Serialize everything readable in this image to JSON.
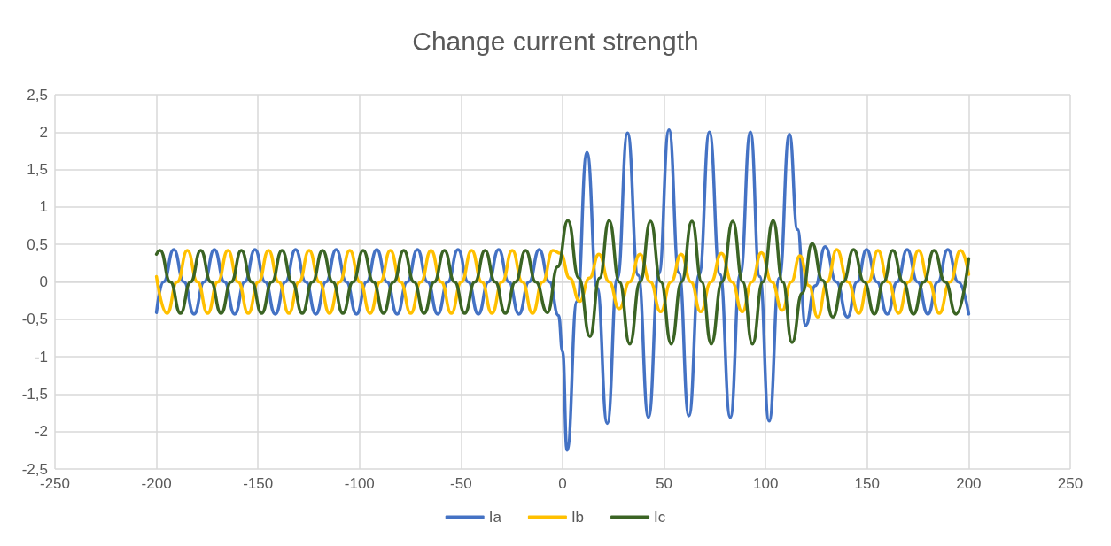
{
  "chart_data": {
    "type": "line",
    "title": "Change current strength",
    "xlim": [
      -250,
      250
    ],
    "xticks": [
      -250,
      -200,
      -150,
      -100,
      -50,
      0,
      50,
      100,
      150,
      200,
      250
    ],
    "ylim": [
      -2.5,
      2.5
    ],
    "yticks": [
      {
        "value": -2.5,
        "label": "-2,5"
      },
      -2,
      {
        "value": -1.5,
        "label": "-1,5"
      },
      -1,
      {
        "value": -0.5,
        "label": "-0,5"
      },
      0,
      {
        "value": 0.5,
        "label": "0,5"
      },
      1,
      {
        "value": 1.5,
        "label": "1,5"
      },
      2,
      {
        "value": 2.5,
        "label": "2,5"
      }
    ],
    "grid": true,
    "legend": "bottom",
    "marker": "none",
    "line_style": "solid",
    "series": [
      {
        "name": "Ia",
        "color": "#4472c4",
        "x": [
          -200,
          -196.5,
          -191.5,
          -186.5,
          -181.5,
          -176.5,
          -171.5,
          -166.5,
          -161.5,
          -156.5,
          -151.5,
          -146.5,
          -141.5,
          -136.5,
          -131.5,
          -126.5,
          -121.5,
          -116.5,
          -111.5,
          -106.5,
          -101.5,
          -96.5,
          -91.5,
          -86.5,
          -81.5,
          -76.5,
          -71.5,
          -66.5,
          -61.5,
          -56.5,
          -51.5,
          -46.5,
          -41.5,
          -36.5,
          -31.5,
          -26.5,
          -21.5,
          -16.5,
          -11.5,
          -6.5,
          -2,
          0,
          2.2,
          7.1,
          12,
          17,
          22,
          27,
          32,
          37.2,
          42.3,
          47.4,
          52.4,
          57.3,
          62.2,
          67.3,
          72.3,
          77.5,
          82.6,
          87.5,
          92.5,
          97.1,
          101.7,
          106.7,
          111.7,
          115.7,
          119.7,
          124.5,
          129.3,
          134.8,
          140.3,
          145,
          149.7,
          154.8,
          159.9,
          164.8,
          169.7,
          174.8,
          179.9,
          184.8,
          189.7,
          194.8,
          200
        ],
        "values": [
          -0.41,
          0,
          0.43,
          0,
          -0.43,
          0,
          0.43,
          0,
          -0.43,
          0,
          0.43,
          0,
          -0.43,
          0,
          0.43,
          0,
          -0.43,
          0,
          0.43,
          0,
          -0.43,
          0,
          0.43,
          0,
          -0.43,
          0,
          0.43,
          0,
          -0.43,
          0,
          0.43,
          0,
          -0.43,
          0,
          0.43,
          0,
          -0.43,
          0,
          0.43,
          0,
          -0.45,
          -0.93,
          -2.25,
          -0.26,
          1.73,
          -0.08,
          -1.89,
          0.05,
          1.99,
          0.09,
          -1.81,
          0.11,
          2.03,
          0.12,
          -1.79,
          0.1,
          2.0,
          0.1,
          -1.81,
          0.1,
          2.0,
          0.07,
          -1.86,
          0.05,
          1.97,
          0.7,
          -0.58,
          -0.05,
          0.47,
          0,
          -0.47,
          0,
          0.43,
          0,
          -0.43,
          0,
          0.43,
          0,
          -0.43,
          0,
          0.43,
          0,
          -0.43
        ]
      },
      {
        "name": "Ib",
        "color": "#ffc000",
        "x": [
          -200,
          -194.8,
          -189.8,
          -184.8,
          -179.8,
          -174.8,
          -169.8,
          -164.8,
          -159.8,
          -154.8,
          -149.8,
          -144.8,
          -139.8,
          -134.8,
          -129.8,
          -124.8,
          -119.8,
          -114.8,
          -109.8,
          -104.8,
          -99.8,
          -94.8,
          -89.8,
          -84.8,
          -79.8,
          -74.8,
          -69.8,
          -64.8,
          -59.8,
          -54.8,
          -49.8,
          -44.8,
          -39.8,
          -34.8,
          -29.8,
          -24.8,
          -19.8,
          -14.8,
          -9.8,
          -4.8,
          -1,
          3.5,
          8.4,
          13.2,
          17.9,
          22.9,
          27.9,
          33,
          38.1,
          43.2,
          48.3,
          53.4,
          58.4,
          63.2,
          68,
          73.1,
          78.2,
          83.4,
          88.5,
          93.2,
          97.9,
          103,
          108.2,
          112.6,
          116.9,
          121.3,
          125.6,
          130.3,
          135,
          140.5,
          145.9,
          150.6,
          155.3,
          160.4,
          165.5,
          170.4,
          175.3,
          180.4,
          185.5,
          190.8,
          196,
          200
        ],
        "values": [
          0.07,
          -0.42,
          0,
          0.42,
          0,
          -0.42,
          0,
          0.42,
          0,
          -0.42,
          0,
          0.42,
          0,
          -0.42,
          0,
          0.42,
          0,
          -0.42,
          0,
          0.42,
          0,
          -0.42,
          0,
          0.42,
          0,
          -0.42,
          0,
          0.42,
          0,
          -0.42,
          0,
          0.42,
          0,
          -0.42,
          0,
          0.42,
          0,
          -0.42,
          0,
          0.42,
          0.38,
          0.05,
          -0.26,
          0.05,
          0.37,
          0,
          -0.36,
          0,
          0.37,
          0,
          -0.4,
          0,
          0.37,
          0,
          -0.4,
          0,
          0.38,
          0,
          -0.4,
          0,
          0.39,
          0,
          -0.38,
          0,
          0.35,
          -0.05,
          -0.47,
          0,
          0.43,
          0,
          -0.42,
          0,
          0.42,
          0,
          -0.42,
          0,
          0.42,
          0,
          -0.42,
          0,
          0.42,
          0.1
        ]
      },
      {
        "name": "Ic",
        "color": "#3b6424",
        "x": [
          -200,
          -198.2,
          -193.2,
          -188.2,
          -183.2,
          -178.2,
          -173.2,
          -168.2,
          -163.2,
          -158.2,
          -153.2,
          -148.2,
          -143.2,
          -138.2,
          -133.2,
          -128.2,
          -123.2,
          -118.2,
          -113.2,
          -108.2,
          -103.2,
          -98.2,
          -93.2,
          -88.2,
          -83.2,
          -78.2,
          -73.2,
          -68.2,
          -63.2,
          -58.2,
          -53.2,
          -48.2,
          -43.2,
          -38.2,
          -33.2,
          -28.2,
          -23.2,
          -18.2,
          -13.2,
          -7.5,
          -2.4,
          2.6,
          8,
          13.5,
          18.2,
          22.9,
          28,
          33.1,
          38.2,
          43.3,
          48.4,
          53.5,
          58.6,
          63.7,
          68.5,
          73.2,
          78.5,
          83.8,
          88.7,
          93.5,
          98.6,
          103.7,
          108.4,
          113,
          118,
          122.9,
          128,
          133.1,
          138.2,
          143.3,
          148.5,
          153.6,
          158.1,
          162.6,
          167.7,
          172.8,
          177.9,
          182.9,
          188.4,
          193.8,
          200
        ],
        "values": [
          0.37,
          0.42,
          0,
          -0.42,
          0,
          0.42,
          0,
          -0.42,
          0,
          0.42,
          0,
          -0.42,
          0,
          0.42,
          0,
          -0.42,
          0,
          0.42,
          0,
          -0.42,
          0,
          0.42,
          0,
          -0.42,
          0,
          0.42,
          0,
          -0.42,
          0,
          0.42,
          0,
          -0.42,
          0,
          0.42,
          0,
          -0.42,
          0,
          0.42,
          0,
          -0.41,
          0.2,
          0.82,
          0.05,
          -0.73,
          0.05,
          0.82,
          0,
          -0.83,
          0,
          0.81,
          0,
          -0.83,
          0,
          0.81,
          0,
          -0.83,
          0,
          0.81,
          0,
          -0.83,
          0,
          0.82,
          0,
          -0.81,
          -0.15,
          0.51,
          0.02,
          -0.47,
          0,
          0.43,
          0,
          -0.43,
          0,
          0.42,
          0,
          -0.43,
          0,
          0.42,
          0,
          -0.43,
          0.31
        ]
      }
    ]
  }
}
